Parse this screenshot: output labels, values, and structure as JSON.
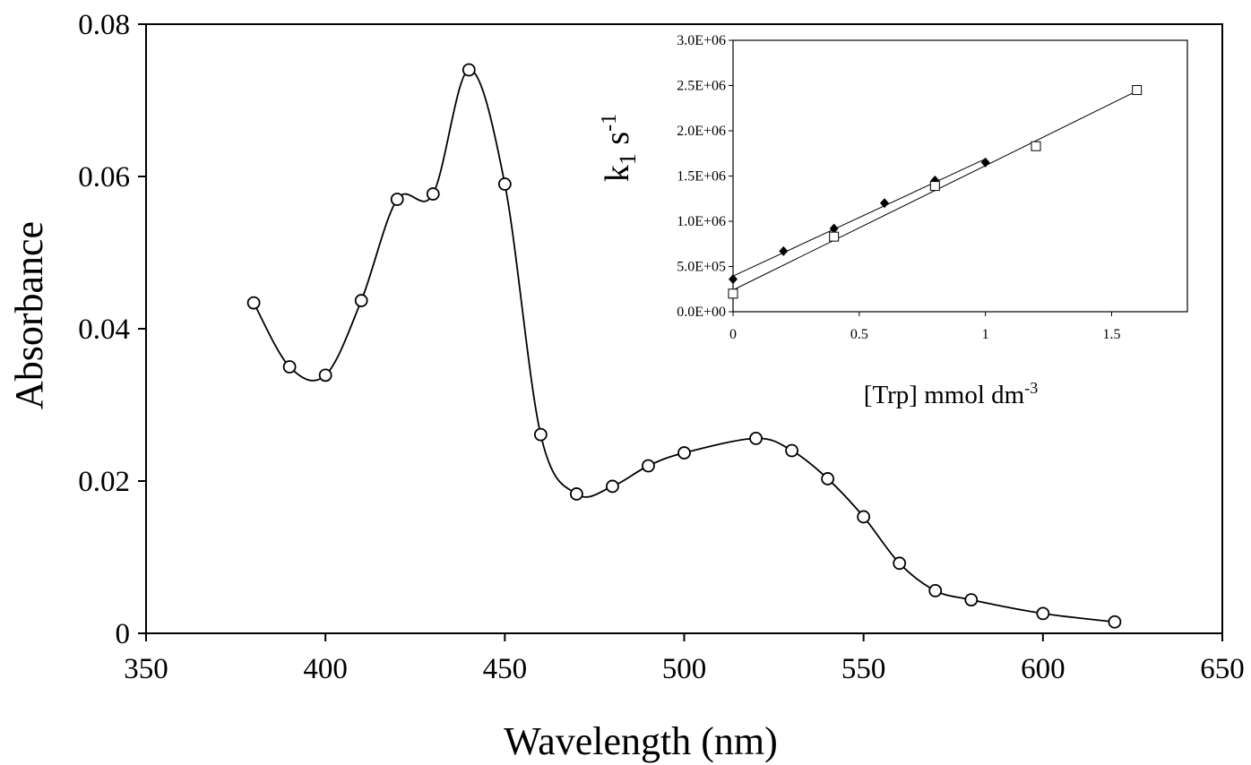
{
  "chart_data": [
    {
      "type": "scatter",
      "xlabel": "Wavelength (nm)",
      "ylabel": "Absorbance",
      "xlim": [
        350,
        650
      ],
      "ylim": [
        0,
        0.08
      ],
      "x_ticks": [
        "350",
        "400",
        "450",
        "500",
        "550",
        "600",
        "650"
      ],
      "y_ticks": [
        "0",
        "0.02",
        "0.04",
        "0.06",
        "0.08"
      ],
      "grid": false,
      "legend": "none",
      "series": [
        {
          "marker": "open-circle",
          "smooth_line": true,
          "x": [
            380,
            390,
            400,
            410,
            420,
            430,
            440,
            450,
            460,
            470,
            480,
            490,
            500,
            520,
            530,
            540,
            550,
            560,
            570,
            580,
            600,
            620
          ],
          "y": [
            0.0434,
            0.035,
            0.0339,
            0.0437,
            0.057,
            0.0577,
            0.074,
            0.059,
            0.0261,
            0.0183,
            0.0193,
            0.022,
            0.0237,
            0.0256,
            0.024,
            0.0203,
            0.0153,
            0.0092,
            0.0056,
            0.0044,
            0.0026,
            0.0015
          ]
        }
      ]
    },
    {
      "type": "scatter",
      "inset": true,
      "xlabel": "[Trp] mmol dm",
      "xlabel_sup": "-3",
      "ylabel": "k",
      "ylabel_sub": "1",
      "ylabel_tail": " s",
      "ylabel_sup": "-1",
      "xlim": [
        0,
        1.8
      ],
      "ylim": [
        0,
        3000000
      ],
      "x_ticks": [
        "0",
        "0.5",
        "1",
        "1.5"
      ],
      "y_ticks": [
        "0.0E+00",
        "5.0E+05",
        "1.0E+06",
        "1.5E+06",
        "2.0E+06",
        "2.5E+06",
        "3.0E+06"
      ],
      "grid": false,
      "legend": "none",
      "series": [
        {
          "marker": "filled-diamond",
          "fit_line": true,
          "x": [
            0,
            0.2,
            0.4,
            0.6,
            0.8,
            1.0
          ],
          "y": [
            360000,
            670000,
            920000,
            1200000,
            1450000,
            1650000
          ]
        },
        {
          "marker": "open-square",
          "fit_line": true,
          "x": [
            0,
            0.4,
            0.8,
            1.2,
            1.6
          ],
          "y": [
            200000,
            830000,
            1390000,
            1830000,
            2450000
          ]
        }
      ]
    }
  ]
}
